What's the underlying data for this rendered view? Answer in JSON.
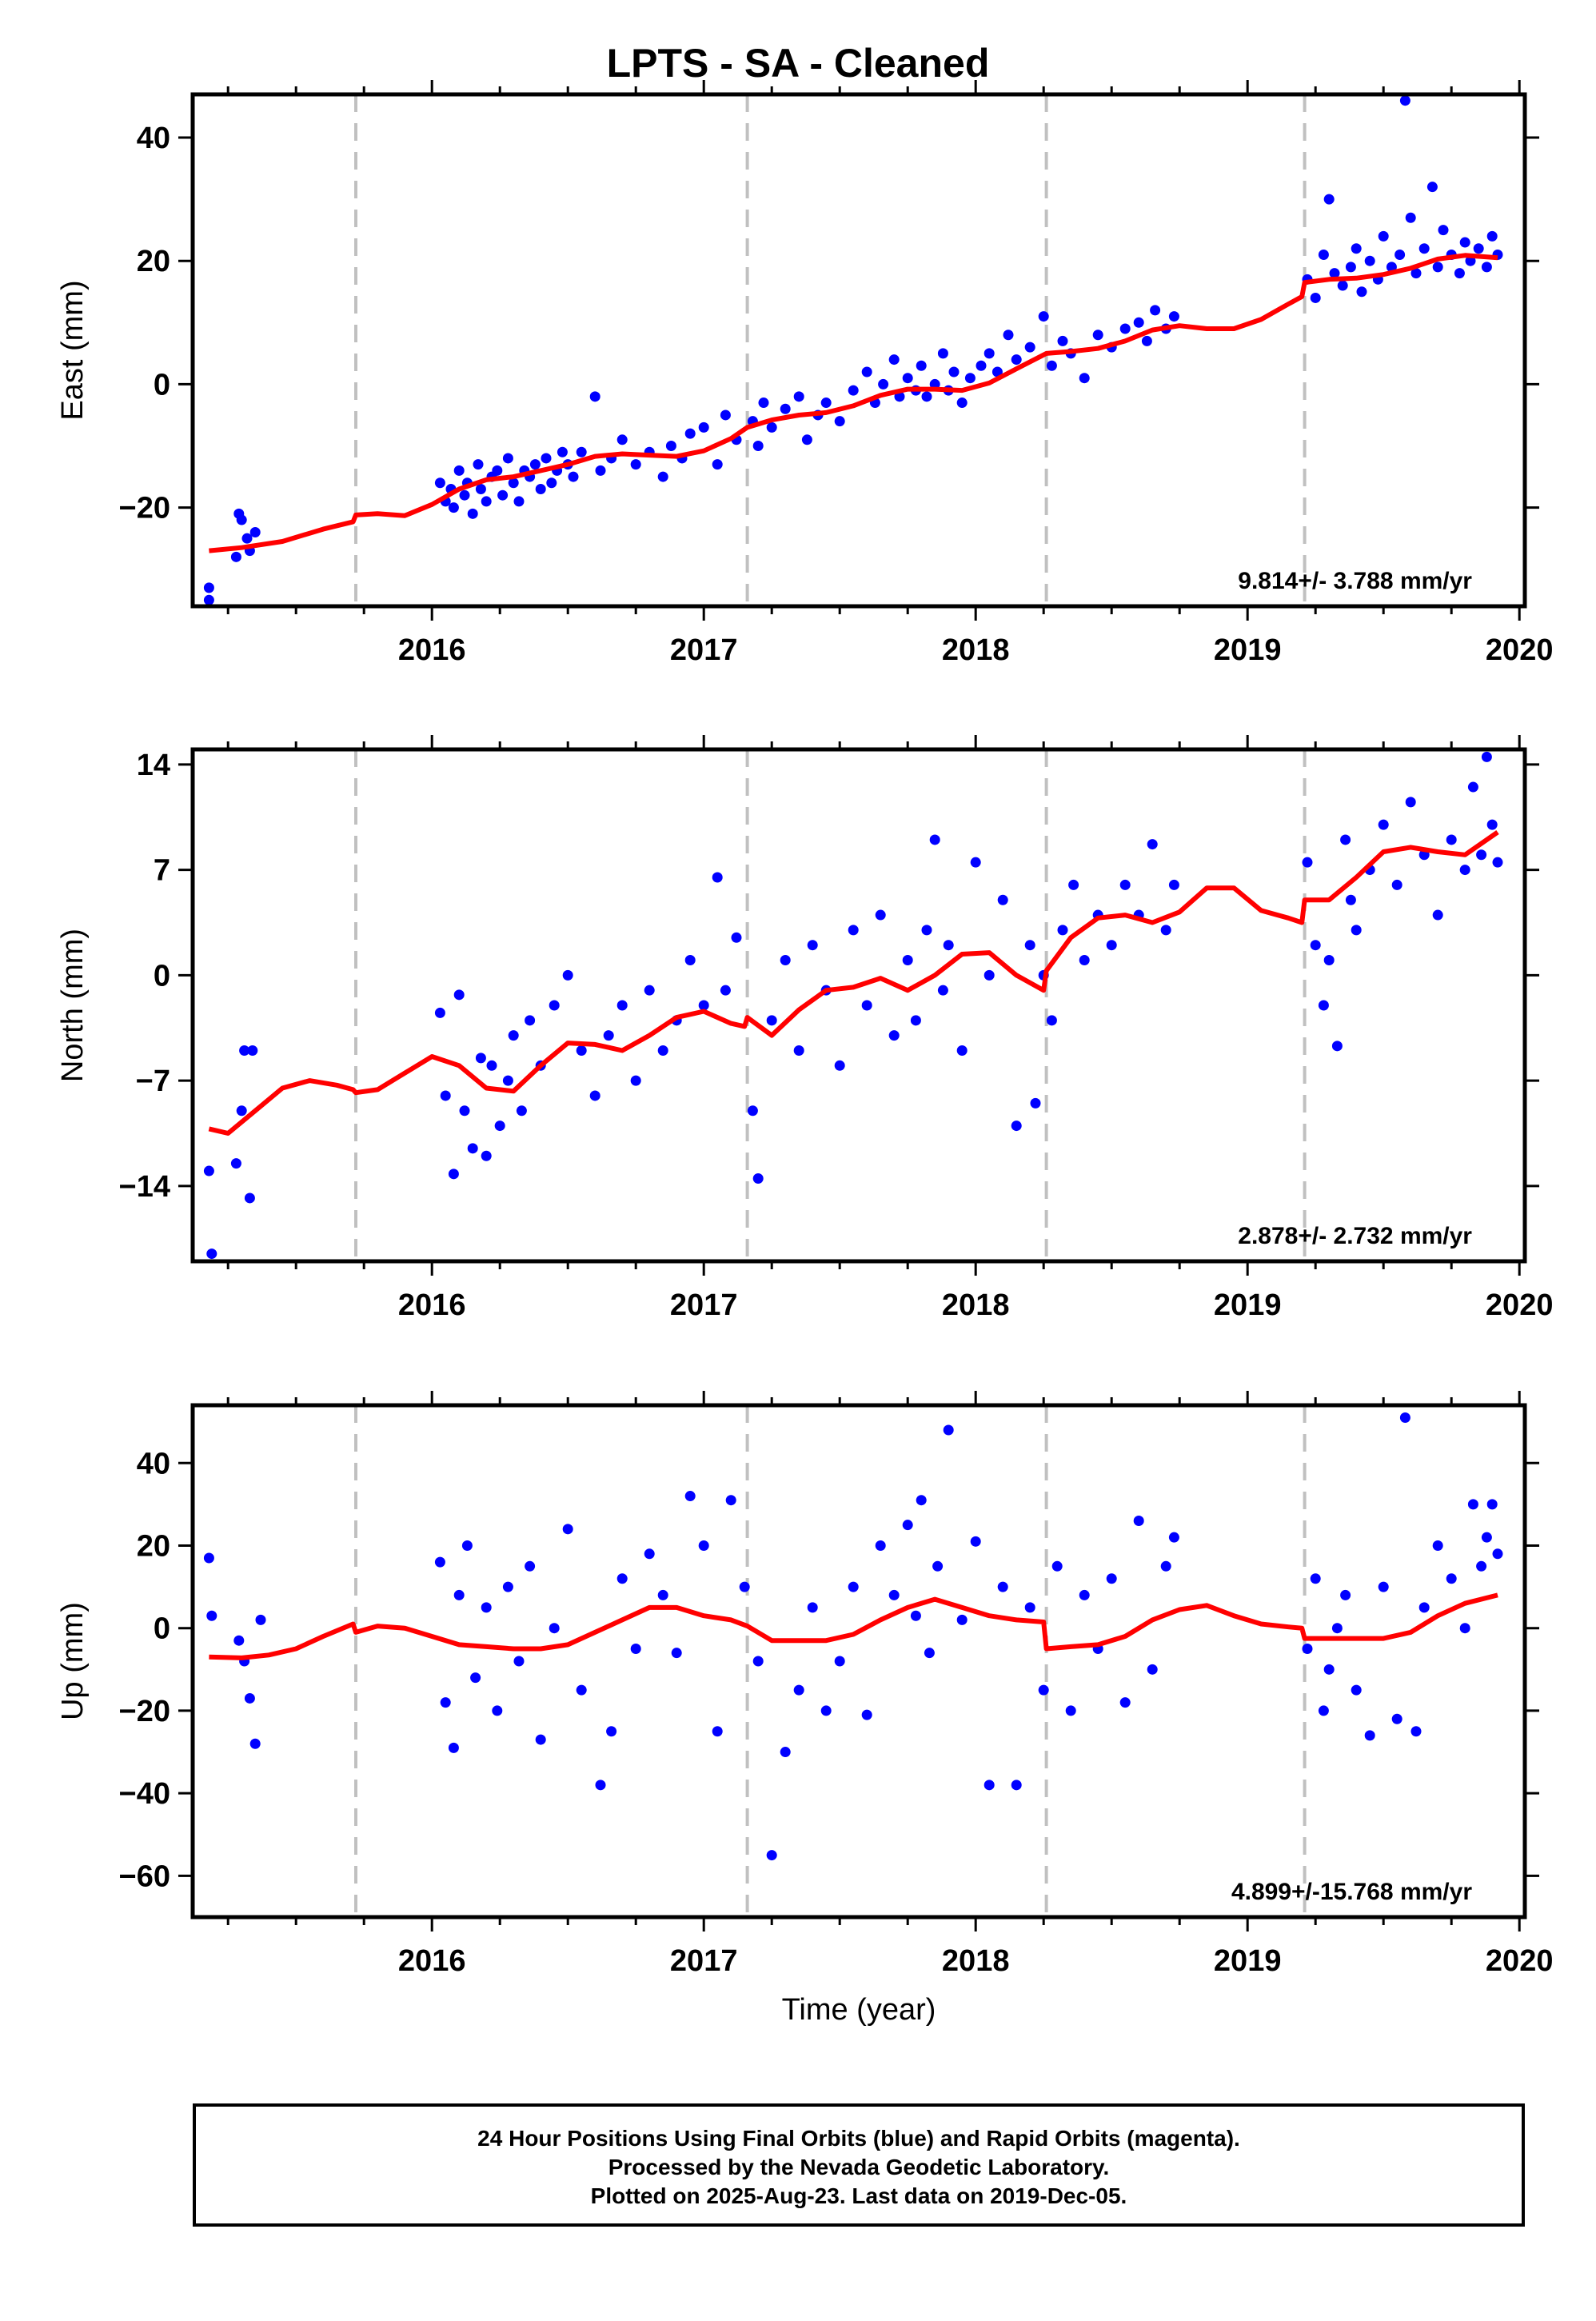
{
  "title": "LPTS  - SA - Cleaned",
  "footer": {
    "line1": "24 Hour Positions Using Final Orbits (blue) and Rapid Orbits (magenta).",
    "line2": "Processed by the Nevada Geodetic Laboratory.",
    "line3": "Plotted on 2025-Aug-23. Last data on 2019-Dec-05."
  },
  "colors": {
    "points": "#0000ff",
    "fit": "#ff0000",
    "events": "#c0c0c0",
    "axes": "#000000"
  },
  "chart_data": [
    {
      "type": "scatter",
      "panel": "east",
      "ylabel": "East (mm)",
      "xlabel": "",
      "xlim": [
        2015.12,
        2020.02
      ],
      "ylim": [
        -36,
        47
      ],
      "xticks": [
        2016,
        2017,
        2018,
        2019,
        2020
      ],
      "yticks": [
        -20,
        0,
        20,
        40
      ],
      "event_lines": [
        2015.72,
        2017.16,
        2018.26,
        2019.21
      ],
      "velocity": "9.814+/- 3.788 mm/yr",
      "fit": {
        "name": "fit",
        "x": [
          2015.18,
          2015.3,
          2015.45,
          2015.6,
          2015.71,
          2015.72,
          2015.8,
          2015.9,
          2016.0,
          2016.1,
          2016.2,
          2016.3,
          2016.4,
          2016.5,
          2016.6,
          2016.7,
          2016.8,
          2016.9,
          2017.0,
          2017.1,
          2017.16,
          2017.25,
          2017.35,
          2017.45,
          2017.55,
          2017.65,
          2017.75,
          2017.85,
          2017.95,
          2018.05,
          2018.15,
          2018.26,
          2018.35,
          2018.45,
          2018.55,
          2018.65,
          2018.75,
          2018.85,
          2018.95,
          2019.05,
          2019.15,
          2019.2,
          2019.21,
          2019.3,
          2019.4,
          2019.5,
          2019.6,
          2019.7,
          2019.8,
          2019.92
        ],
        "y": [
          -27,
          -26.5,
          -25.5,
          -23.5,
          -22.3,
          -21.2,
          -21.0,
          -21.3,
          -19.5,
          -17.0,
          -15.5,
          -15.0,
          -14.0,
          -13.0,
          -11.7,
          -11.3,
          -11.5,
          -11.7,
          -10.8,
          -8.8,
          -7.0,
          -5.8,
          -5.0,
          -4.6,
          -3.5,
          -1.8,
          -0.8,
          -0.8,
          -1.0,
          0.2,
          2.5,
          5.0,
          5.3,
          5.8,
          7.0,
          8.8,
          9.5,
          9.0,
          9.0,
          10.5,
          13.0,
          14.2,
          16.5,
          17.0,
          17.2,
          17.8,
          18.8,
          20.3,
          20.9,
          20.5
        ]
      },
      "points": {
        "name": "positions",
        "x": [
          2015.18,
          2015.18,
          2015.28,
          2015.29,
          2015.3,
          2015.32,
          2015.33,
          2015.35,
          2016.03,
          2016.05,
          2016.07,
          2016.08,
          2016.1,
          2016.12,
          2016.13,
          2016.15,
          2016.17,
          2016.18,
          2016.2,
          2016.22,
          2016.24,
          2016.26,
          2016.28,
          2016.3,
          2016.32,
          2016.34,
          2016.36,
          2016.38,
          2016.4,
          2016.42,
          2016.44,
          2016.46,
          2016.48,
          2016.5,
          2016.52,
          2016.55,
          2016.6,
          2016.62,
          2016.66,
          2016.7,
          2016.75,
          2016.8,
          2016.85,
          2016.88,
          2016.92,
          2016.95,
          2017.0,
          2017.05,
          2017.08,
          2017.12,
          2017.18,
          2017.2,
          2017.22,
          2017.25,
          2017.3,
          2017.35,
          2017.38,
          2017.42,
          2017.45,
          2017.5,
          2017.55,
          2017.6,
          2017.63,
          2017.66,
          2017.7,
          2017.72,
          2017.75,
          2017.78,
          2017.8,
          2017.82,
          2017.85,
          2017.88,
          2017.9,
          2017.92,
          2017.95,
          2017.98,
          2018.02,
          2018.05,
          2018.08,
          2018.12,
          2018.15,
          2018.2,
          2018.25,
          2018.28,
          2018.32,
          2018.35,
          2018.4,
          2018.45,
          2018.5,
          2018.55,
          2018.6,
          2018.63,
          2018.66,
          2018.7,
          2018.73,
          2019.22,
          2019.25,
          2019.28,
          2019.3,
          2019.32,
          2019.35,
          2019.38,
          2019.4,
          2019.42,
          2019.45,
          2019.48,
          2019.5,
          2019.53,
          2019.56,
          2019.58,
          2019.6,
          2019.62,
          2019.65,
          2019.68,
          2019.7,
          2019.72,
          2019.75,
          2019.78,
          2019.8,
          2019.82,
          2019.85,
          2019.88,
          2019.9,
          2019.92
        ],
        "y": [
          -33,
          -35,
          -28,
          -21,
          -22,
          -25,
          -27,
          -24,
          -16,
          -19,
          -17,
          -20,
          -14,
          -18,
          -16,
          -21,
          -13,
          -17,
          -19,
          -15,
          -14,
          -18,
          -12,
          -16,
          -19,
          -14,
          -15,
          -13,
          -17,
          -12,
          -16,
          -14,
          -11,
          -13,
          -15,
          -11,
          -2,
          -14,
          -12,
          -9,
          -13,
          -11,
          -15,
          -10,
          -12,
          -8,
          -7,
          -13,
          -5,
          -9,
          -6,
          -10,
          -3,
          -7,
          -4,
          -2,
          -9,
          -5,
          -3,
          -6,
          -1,
          2,
          -3,
          0,
          4,
          -2,
          1,
          -1,
          3,
          -2,
          0,
          5,
          -1,
          2,
          -3,
          1,
          3,
          5,
          2,
          8,
          4,
          6,
          11,
          3,
          7,
          5,
          1,
          8,
          6,
          9,
          10,
          7,
          12,
          9,
          11,
          17,
          14,
          21,
          30,
          18,
          16,
          19,
          22,
          15,
          20,
          17,
          24,
          19,
          21,
          46,
          27,
          18,
          22,
          32,
          19,
          25,
          21,
          18,
          23,
          20,
          22,
          19,
          24,
          21
        ]
      }
    },
    {
      "type": "scatter",
      "panel": "north",
      "ylabel": "North (mm)",
      "xlabel": "",
      "xlim": [
        2015.12,
        2020.02
      ],
      "ylim": [
        -19,
        15
      ],
      "xticks": [
        2016,
        2017,
        2018,
        2019,
        2020
      ],
      "yticks": [
        -14,
        -7,
        0,
        7,
        14
      ],
      "event_lines": [
        2015.72,
        2017.16,
        2018.26,
        2019.21
      ],
      "velocity": "2.878+/- 2.732 mm/yr",
      "fit": {
        "name": "fit",
        "x": [
          2015.18,
          2015.25,
          2015.35,
          2015.45,
          2015.55,
          2015.65,
          2015.71,
          2015.72,
          2015.8,
          2015.9,
          2016.0,
          2016.1,
          2016.2,
          2016.3,
          2016.4,
          2016.5,
          2016.6,
          2016.7,
          2016.8,
          2016.9,
          2017.0,
          2017.1,
          2017.15,
          2017.16,
          2017.25,
          2017.35,
          2017.45,
          2017.55,
          2017.65,
          2017.75,
          2017.85,
          2017.95,
          2018.05,
          2018.15,
          2018.25,
          2018.26,
          2018.35,
          2018.45,
          2018.55,
          2018.65,
          2018.75,
          2018.85,
          2018.95,
          2019.05,
          2019.15,
          2019.2,
          2019.21,
          2019.3,
          2019.4,
          2019.5,
          2019.6,
          2019.7,
          2019.8,
          2019.92
        ],
        "y": [
          -10.2,
          -10.5,
          -9.0,
          -7.5,
          -7.0,
          -7.3,
          -7.6,
          -7.8,
          -7.6,
          -6.5,
          -5.4,
          -6.0,
          -7.5,
          -7.7,
          -6.0,
          -4.5,
          -4.6,
          -5.0,
          -4.0,
          -2.8,
          -2.4,
          -3.2,
          -3.4,
          -2.8,
          -4.0,
          -2.3,
          -1.0,
          -0.8,
          -0.2,
          -1.0,
          0.0,
          1.4,
          1.5,
          0.0,
          -1.0,
          0.3,
          2.5,
          3.8,
          4.0,
          3.5,
          4.2,
          5.8,
          5.8,
          4.3,
          3.8,
          3.5,
          5.0,
          5.0,
          6.5,
          8.2,
          8.5,
          8.2,
          8.0,
          9.5
        ]
      },
      "points": {
        "name": "positions",
        "x": [
          2015.18,
          2015.19,
          2015.28,
          2015.3,
          2015.31,
          2015.33,
          2015.34,
          2016.03,
          2016.05,
          2016.08,
          2016.1,
          2016.12,
          2016.15,
          2016.18,
          2016.2,
          2016.22,
          2016.25,
          2016.28,
          2016.3,
          2016.33,
          2016.36,
          2016.4,
          2016.45,
          2016.5,
          2016.55,
          2016.6,
          2016.65,
          2016.7,
          2016.75,
          2016.8,
          2016.85,
          2016.9,
          2016.95,
          2017.0,
          2017.05,
          2017.08,
          2017.12,
          2017.18,
          2017.2,
          2017.25,
          2017.3,
          2017.35,
          2017.4,
          2017.45,
          2017.5,
          2017.55,
          2017.6,
          2017.65,
          2017.7,
          2017.75,
          2017.78,
          2017.82,
          2017.85,
          2017.88,
          2017.9,
          2017.95,
          2018.0,
          2018.05,
          2018.1,
          2018.15,
          2018.2,
          2018.22,
          2018.25,
          2018.28,
          2018.32,
          2018.36,
          2018.4,
          2018.45,
          2018.5,
          2018.55,
          2018.6,
          2018.65,
          2018.7,
          2018.73,
          2019.22,
          2019.25,
          2019.28,
          2019.3,
          2019.33,
          2019.36,
          2019.38,
          2019.4,
          2019.45,
          2019.5,
          2019.55,
          2019.6,
          2019.65,
          2019.7,
          2019.75,
          2019.8,
          2019.83,
          2019.86,
          2019.88,
          2019.9,
          2019.92
        ],
        "y": [
          -13,
          -18.5,
          -12.5,
          -9,
          -5,
          -14.8,
          -5,
          -2.5,
          -8,
          -13.2,
          -1.3,
          -9,
          -11.5,
          -5.5,
          -12,
          -6,
          -10,
          -7,
          -4,
          -9,
          -3,
          -6,
          -2,
          0,
          -5,
          -8,
          -4,
          -2,
          -7,
          -1,
          -5,
          -3,
          1,
          -2,
          6.5,
          -1,
          2.5,
          -9,
          -13.5,
          -3,
          1,
          -5,
          2,
          -1,
          -6,
          3,
          -2,
          4,
          -4,
          1,
          -3,
          3,
          9,
          -1,
          2,
          -5,
          7.5,
          0,
          5,
          -10,
          2,
          -8.5,
          0,
          -3,
          3,
          6,
          1,
          4,
          2,
          6,
          4,
          8.7,
          3,
          6,
          7.5,
          2,
          -2,
          1,
          -4.7,
          9,
          5,
          3,
          7,
          10,
          6,
          11.5,
          8,
          4,
          9,
          7,
          12.5,
          8,
          14.5,
          10,
          7.5
        ]
      }
    },
    {
      "type": "scatter",
      "panel": "up",
      "ylabel": "Up (mm)",
      "xlabel": "Time (year)",
      "xlim": [
        2015.12,
        2020.02
      ],
      "ylim": [
        -70,
        54
      ],
      "xticks": [
        2016,
        2017,
        2018,
        2019,
        2020
      ],
      "yticks": [
        -60,
        -40,
        -20,
        0,
        20,
        40
      ],
      "event_lines": [
        2015.72,
        2017.16,
        2018.26,
        2019.21
      ],
      "velocity": "4.899+/-15.768 mm/yr",
      "fit": {
        "name": "fit",
        "x": [
          2015.18,
          2015.3,
          2015.4,
          2015.5,
          2015.6,
          2015.71,
          2015.72,
          2015.8,
          2015.9,
          2016.0,
          2016.1,
          2016.2,
          2016.3,
          2016.4,
          2016.5,
          2016.6,
          2016.7,
          2016.8,
          2016.9,
          2017.0,
          2017.1,
          2017.16,
          2017.25,
          2017.35,
          2017.45,
          2017.55,
          2017.65,
          2017.75,
          2017.85,
          2017.95,
          2018.05,
          2018.15,
          2018.25,
          2018.26,
          2018.35,
          2018.45,
          2018.55,
          2018.65,
          2018.75,
          2018.85,
          2018.95,
          2019.05,
          2019.15,
          2019.2,
          2019.21,
          2019.3,
          2019.4,
          2019.5,
          2019.6,
          2019.7,
          2019.8,
          2019.92
        ],
        "y": [
          -7,
          -7.2,
          -6.5,
          -5,
          -2,
          1,
          -1,
          0.5,
          0,
          -2,
          -4,
          -4.5,
          -5,
          -5,
          -4,
          -1,
          2,
          5,
          5,
          3,
          2,
          0.5,
          -3,
          -3,
          -3,
          -1.5,
          2,
          5,
          7,
          5,
          3,
          2,
          1.5,
          -5,
          -4.5,
          -4,
          -2,
          2,
          4.5,
          5.5,
          3,
          1,
          0.3,
          0,
          -2.5,
          -2.5,
          -2.5,
          -2.5,
          -1,
          3,
          6,
          8
        ]
      },
      "points": {
        "name": "positions",
        "x": [
          2015.18,
          2015.19,
          2015.29,
          2015.31,
          2015.33,
          2015.35,
          2015.37,
          2016.03,
          2016.05,
          2016.08,
          2016.1,
          2016.13,
          2016.16,
          2016.2,
          2016.24,
          2016.28,
          2016.32,
          2016.36,
          2016.4,
          2016.45,
          2016.5,
          2016.55,
          2016.62,
          2016.66,
          2016.7,
          2016.75,
          2016.8,
          2016.85,
          2016.9,
          2016.95,
          2017.0,
          2017.05,
          2017.1,
          2017.15,
          2017.2,
          2017.25,
          2017.3,
          2017.35,
          2017.4,
          2017.45,
          2017.5,
          2017.55,
          2017.6,
          2017.65,
          2017.7,
          2017.75,
          2017.78,
          2017.8,
          2017.83,
          2017.86,
          2017.9,
          2017.95,
          2018.0,
          2018.05,
          2018.1,
          2018.15,
          2018.2,
          2018.25,
          2018.3,
          2018.35,
          2018.4,
          2018.45,
          2018.5,
          2018.55,
          2018.6,
          2018.65,
          2018.7,
          2018.73,
          2019.22,
          2019.25,
          2019.28,
          2019.3,
          2019.33,
          2019.36,
          2019.4,
          2019.45,
          2019.5,
          2019.55,
          2019.58,
          2019.62,
          2019.65,
          2019.7,
          2019.75,
          2019.8,
          2019.83,
          2019.86,
          2019.88,
          2019.9,
          2019.92
        ],
        "y": [
          17,
          3,
          -3,
          -8,
          -17,
          -28,
          2,
          16,
          -18,
          -29,
          8,
          20,
          -12,
          5,
          -20,
          10,
          -8,
          15,
          -27,
          0,
          24,
          -15,
          -38,
          -25,
          12,
          -5,
          18,
          8,
          -6,
          32,
          20,
          -25,
          31,
          10,
          -8,
          -55,
          -30,
          -15,
          5,
          -20,
          -8,
          10,
          -21,
          20,
          8,
          25,
          3,
          31,
          -6,
          15,
          48,
          2,
          21,
          -38,
          10,
          -38,
          5,
          -15,
          15,
          -20,
          8,
          -5,
          12,
          -18,
          26,
          -10,
          15,
          22,
          -5,
          12,
          -20,
          -10,
          0,
          8,
          -15,
          -26,
          10,
          -22,
          51,
          -25,
          5,
          20,
          12,
          0,
          30,
          15,
          22,
          30,
          18
        ]
      }
    }
  ]
}
